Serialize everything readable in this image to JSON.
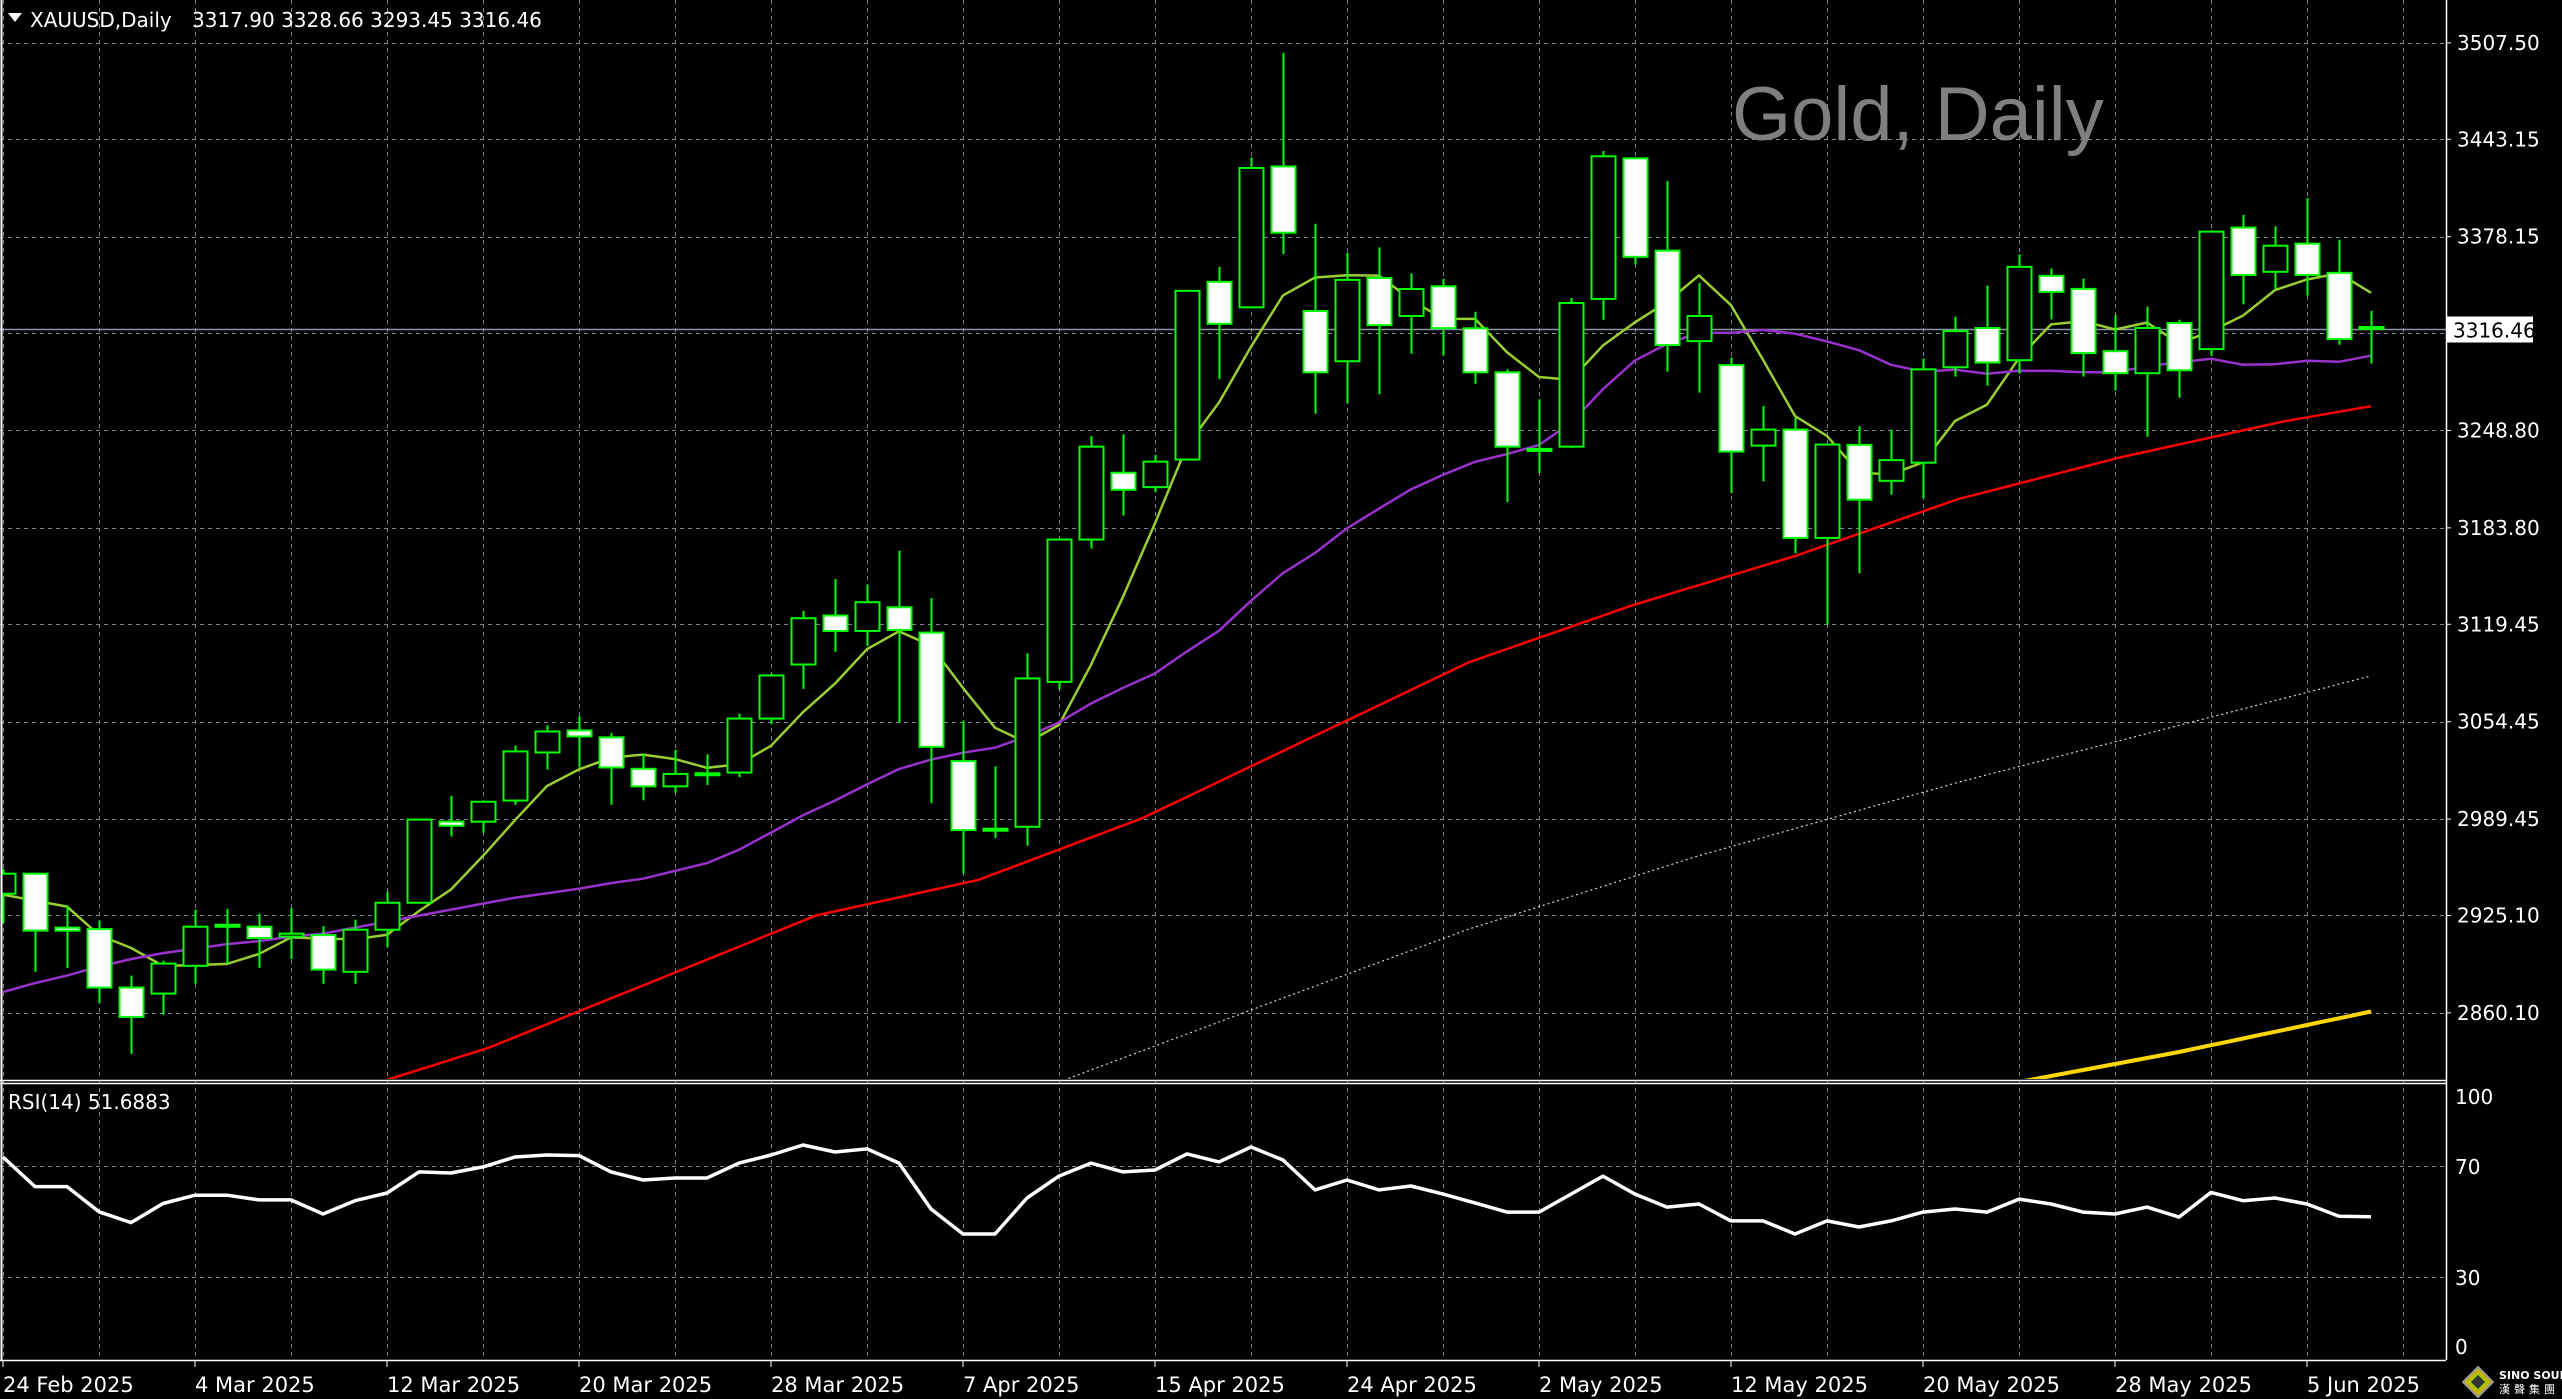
{
  "header": {
    "symbol": "XAUUSD,Daily",
    "ohlc": "3317.90 3328.66 3293.45 3316.46"
  },
  "watermark": "Gold, Daily",
  "current_price": "3316.46",
  "rsi_label": "RSI(14) 51.6883",
  "logo": {
    "name": "SINO SOUND",
    "chinese": "漢聲集團"
  },
  "colors": {
    "background": "#000000",
    "candle_outline": "#00ff00",
    "bull_body": "#000000",
    "bear_body": "#ffffff",
    "grid": "#7d8796",
    "sma5": "#9acd32",
    "sma20": "#9932cc",
    "sma50": "#ff0000",
    "sma100": "#d8d8d8",
    "sma200": "#ffd700",
    "rsi": "#ffffff",
    "watermark": "#7f7f7f"
  },
  "chart_data": {
    "type": "candlestick",
    "title": "Gold, Daily",
    "symbol": "XAUUSD",
    "ylim": [
      2815.3,
      3536.1
    ],
    "price_axis_labels": [
      "3507.50",
      "3443.15",
      "3378.15",
      "3248.80",
      "3183.80",
      "3119.45",
      "3054.45",
      "2989.45",
      "2925.10",
      "2860.10"
    ],
    "hidden_gridline_price": 3313.8,
    "x_ticks": [
      {
        "index": 0,
        "label": "24 Feb 2025"
      },
      {
        "index": 6,
        "label": "4 Mar 2025"
      },
      {
        "index": 12,
        "label": "12 Mar 2025"
      },
      {
        "index": 18,
        "label": "20 Mar 2025"
      },
      {
        "index": 24,
        "label": "28 Mar 2025"
      },
      {
        "index": 30,
        "label": "7 Apr 2025"
      },
      {
        "index": 36,
        "label": "15 Apr 2025"
      },
      {
        "index": 42,
        "label": "24 Apr 2025"
      },
      {
        "index": 48,
        "label": "2 May 2025"
      },
      {
        "index": 54,
        "label": "12 May 2025"
      },
      {
        "index": 60,
        "label": "20 May 2025"
      },
      {
        "index": 66,
        "label": "28 May 2025"
      },
      {
        "index": 72,
        "label": "5 Jun 2025"
      }
    ],
    "ohlc_columns": [
      "open",
      "high",
      "low",
      "close"
    ],
    "ohlc": [
      [
        2939.6,
        2956,
        2920,
        2953
      ],
      [
        2953,
        2953.7,
        2887.5,
        2915
      ],
      [
        2917,
        2931.6,
        2890,
        2915
      ],
      [
        2916,
        2921.6,
        2866.8,
        2877
      ],
      [
        2877,
        2885,
        2832.7,
        2857.4
      ],
      [
        2873,
        2894.9,
        2858.8,
        2893
      ],
      [
        2891.5,
        2929,
        2879.5,
        2917.6
      ],
      [
        2918,
        2929.6,
        2892.9,
        2918.9
      ],
      [
        2917.6,
        2926.3,
        2890.2,
        2910
      ],
      [
        2911,
        2930,
        2896,
        2913
      ],
      [
        2912,
        2918,
        2879.5,
        2889
      ],
      [
        2887.5,
        2922.3,
        2879.5,
        2915.6
      ],
      [
        2915.6,
        2941,
        2904,
        2933.6
      ],
      [
        2933.6,
        2989.5,
        2933,
        2989.1
      ],
      [
        2987.8,
        3005,
        2977.8,
        2985
      ],
      [
        2987.7,
        3001.8,
        2980.4,
        3001
      ],
      [
        3001.8,
        3038.6,
        2999,
        3034.6
      ],
      [
        3033.9,
        3052,
        3022.5,
        3047.9
      ],
      [
        3048.6,
        3058,
        3023.9,
        3044.6
      ],
      [
        3044,
        3047,
        2999,
        3023.9
      ],
      [
        3023,
        3033,
        3002,
        3011.3
      ],
      [
        3011.3,
        3035.7,
        3007,
        3019.6
      ],
      [
        3020,
        3032.6,
        3012.2,
        3019
      ],
      [
        3020.5,
        3059.8,
        3017.4,
        3056.5
      ],
      [
        3056.5,
        3086.6,
        3052.7,
        3085.3
      ],
      [
        3092.6,
        3128.4,
        3076.3,
        3123.5
      ],
      [
        3125.3,
        3149.6,
        3101.1,
        3115
      ],
      [
        3115,
        3145.8,
        3104.9,
        3134.2
      ],
      [
        3130.8,
        3168.6,
        3053.6,
        3115.7
      ],
      [
        3113.9,
        3136.9,
        3000,
        3037.7
      ],
      [
        3028.1,
        3055,
        2953.1,
        2982.1
      ],
      [
        2983,
        3024.6,
        2976.8,
        2982.5
      ],
      [
        2984.3,
        3100,
        2971.6,
        3083.3
      ],
      [
        3081,
        3176.5,
        3076,
        3176
      ],
      [
        3176,
        3245,
        3170,
        3238
      ],
      [
        3220.6,
        3246.3,
        3192,
        3209.2
      ],
      [
        3211,
        3232.4,
        3207.5,
        3228
      ],
      [
        3229.4,
        3342.6,
        3228.7,
        3342
      ],
      [
        3348,
        3358,
        3283,
        3320
      ],
      [
        3331,
        3431,
        3331,
        3424
      ],
      [
        3425,
        3500.9,
        3366.5,
        3380.8
      ],
      [
        3328.5,
        3386.8,
        3260,
        3287.6
      ],
      [
        3295,
        3367.4,
        3267,
        3349.3
      ],
      [
        3350.6,
        3371,
        3273,
        3319.1
      ],
      [
        3325.2,
        3353.6,
        3300,
        3343.2
      ],
      [
        3345,
        3350,
        3298.8,
        3317.1
      ],
      [
        3317,
        3328,
        3280,
        3287.6
      ],
      [
        3287.6,
        3289.7,
        3201,
        3238
      ],
      [
        3236,
        3269.6,
        3220.4,
        3236.5
      ],
      [
        3238,
        3337.3,
        3237,
        3333.9
      ],
      [
        3336.6,
        3435.3,
        3322.7,
        3431.8
      ],
      [
        3430.4,
        3431,
        3359.6,
        3364.7
      ],
      [
        3368.8,
        3415.2,
        3288.1,
        3305.8
      ],
      [
        3308.4,
        3347.3,
        3274,
        3325.2
      ],
      [
        3292.4,
        3297.5,
        3207,
        3234.7
      ],
      [
        3238.7,
        3265.1,
        3214.8,
        3249.4
      ],
      [
        3249.4,
        3257.3,
        3166.8,
        3177.1
      ],
      [
        3177.1,
        3239.4,
        3119.2,
        3239.4
      ],
      [
        3239.2,
        3251.7,
        3153.4,
        3202.6
      ],
      [
        3215.2,
        3249.4,
        3205.9,
        3229
      ],
      [
        3227.3,
        3296.8,
        3203.6,
        3289.6
      ],
      [
        3291,
        3324.8,
        3284.8,
        3315.1
      ],
      [
        3317.2,
        3345.5,
        3278.7,
        3294.1
      ],
      [
        3295.7,
        3366.3,
        3286.8,
        3358
      ],
      [
        3352,
        3356.9,
        3323,
        3341.3
      ],
      [
        3343.3,
        3350.2,
        3284.8,
        3300.4
      ],
      [
        3301.7,
        3325.9,
        3275.4,
        3287
      ],
      [
        3287,
        3331.5,
        3244.6,
        3317.2
      ],
      [
        3320.5,
        3322.7,
        3270.7,
        3289
      ],
      [
        3303.1,
        3382.4,
        3298.6,
        3381.5
      ],
      [
        3384.2,
        3392.7,
        3333,
        3352.6
      ],
      [
        3354.7,
        3385.1,
        3343.3,
        3372.1
      ],
      [
        3373.5,
        3403.8,
        3338.8,
        3352.6
      ],
      [
        3354,
        3376.1,
        3306,
        3309.8
      ],
      [
        3317.9,
        3328.66,
        3293.45,
        3316.46
      ]
    ],
    "moving_averages": [
      {
        "name": "SMA5",
        "period": 5,
        "color_key": "sma5",
        "head": [
          2939,
          2935,
          2931,
          2912
        ]
      },
      {
        "name": "SMA20",
        "period": 20,
        "color_key": "sma20",
        "head": [
          2874,
          2880,
          2885,
          2891,
          2896,
          2900,
          2903,
          2906,
          2908,
          2911,
          2913,
          2917,
          2921,
          2925,
          2929,
          2933,
          2937,
          2940,
          2943
        ]
      },
      {
        "name": "SMA50",
        "color_key": "sma50",
        "anchors": [
          [
            10,
            2800
          ],
          [
            11.8,
            2814
          ],
          [
            15.2,
            2837
          ],
          [
            20.3,
            2881
          ],
          [
            25.4,
            2925
          ],
          [
            30.5,
            2949
          ],
          [
            35.6,
            2990
          ],
          [
            40.7,
            3042
          ],
          [
            45.8,
            3094
          ],
          [
            50.9,
            3132
          ],
          [
            56,
            3165
          ],
          [
            61.1,
            3203
          ],
          [
            66.2,
            3231
          ],
          [
            71.3,
            3255
          ],
          [
            74,
            3265
          ]
        ]
      },
      {
        "name": "SMA100",
        "color_key": "sma100",
        "dotted": true,
        "anchors": [
          [
            33,
            2814
          ],
          [
            40,
            2870
          ],
          [
            45.8,
            2916
          ],
          [
            53,
            2965
          ],
          [
            61.1,
            3014
          ],
          [
            68,
            3052
          ],
          [
            74,
            3085
          ]
        ]
      },
      {
        "name": "SMA200",
        "color_key": "sma200",
        "anchors": [
          [
            63,
            2814
          ],
          [
            68,
            2834
          ],
          [
            74,
            2861
          ]
        ]
      }
    ],
    "rsi": {
      "period": 14,
      "current": 51.6883,
      "ylim": [
        0,
        100
      ],
      "axis_labels": [
        "100",
        "70",
        "30",
        "0"
      ],
      "levels": [
        70,
        30
      ],
      "values": [
        73.3,
        62.6,
        62.6,
        53.5,
        49.6,
        56.5,
        59.5,
        59.5,
        57.8,
        57.8,
        52.7,
        57.5,
        60.3,
        67.9,
        67.5,
        69.7,
        73.3,
        74,
        73.8,
        67.9,
        65,
        65.7,
        65.7,
        71.1,
        74,
        77.6,
        75.1,
        76.2,
        71.1,
        54.5,
        45.5,
        45.5,
        58.5,
        66.4,
        71.1,
        67.9,
        68.6,
        74.4,
        71.5,
        76.9,
        72.2,
        61.4,
        65,
        61.4,
        62.8,
        59.9,
        56.7,
        53.4,
        53.4,
        59.9,
        66.4,
        59.9,
        55.2,
        56.3,
        50.2,
        50.2,
        45.5,
        50.2,
        48,
        50.2,
        53.4,
        54.5,
        53.4,
        58.1,
        56.3,
        53.4,
        52.7,
        55.2,
        51.6,
        60.5,
        57.5,
        58.5,
        56.3,
        51.9,
        51.7
      ]
    }
  }
}
